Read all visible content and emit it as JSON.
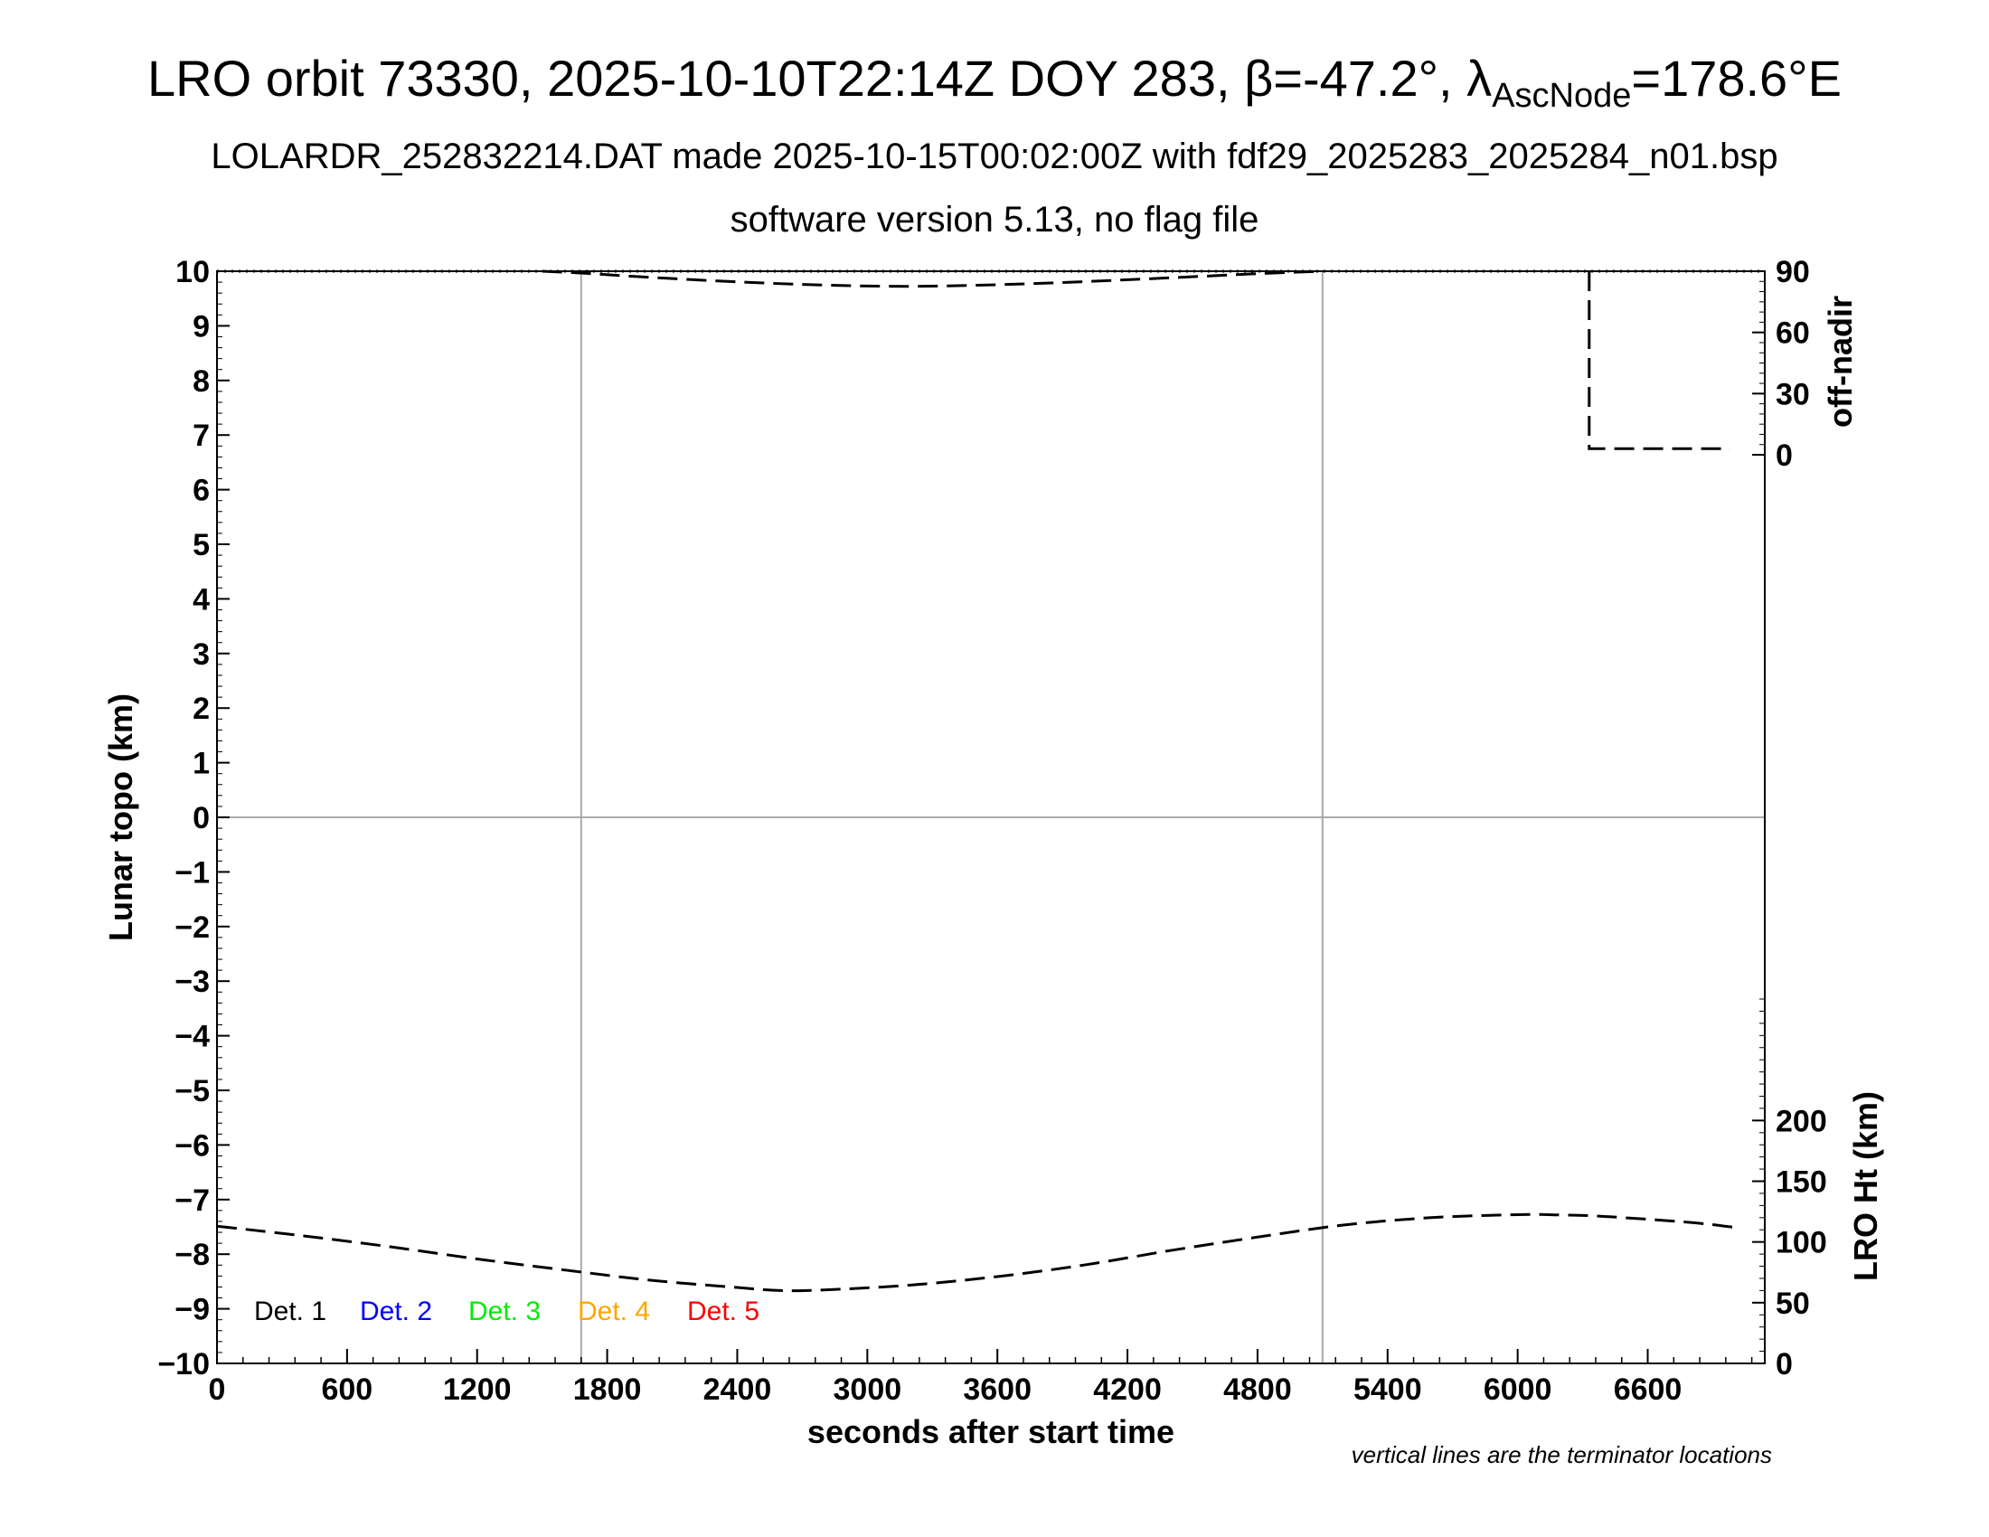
{
  "title": {
    "main": "LRO orbit 73330, 2025-10-10T22:14Z DOY 283, β=-47.2°, λ",
    "sub": "AscNode",
    "tail": "=178.6°E"
  },
  "subtitle1": "LOLARDR_252832214.DAT made 2025-10-15T00:02:00Z with fdf29_2025283_2025284_n01.bsp",
  "subtitle2": "software version 5.13, no flag file",
  "note": "vertical lines are the terminator locations",
  "colors": {
    "det1": "#000000",
    "det2": "#0000ff",
    "det3": "#00ee00",
    "det4": "#ffa500",
    "det5": "#ff0000",
    "grid": "#aaaaaa"
  },
  "chart_data": {
    "type": "line",
    "xlabel": "seconds after start time",
    "ylabel": "Lunar topo (km)",
    "right_top_label": "off-nadir",
    "right_bottom_label": "LRO Ht (km)",
    "xlim": [
      0,
      7140
    ],
    "ylim": [
      -10,
      10
    ],
    "x_ticks": [
      0,
      600,
      1200,
      1800,
      2400,
      3000,
      3600,
      4200,
      4800,
      5400,
      6000,
      6600
    ],
    "y_ticks": [
      10,
      9,
      8,
      7,
      6,
      5,
      4,
      3,
      2,
      1,
      0,
      -1,
      -2,
      -3,
      -4,
      -5,
      -6,
      -7,
      -8,
      -9,
      -10
    ],
    "y_tick_labels": [
      "10",
      "9",
      "8",
      "7",
      "6",
      "5",
      "4",
      "3",
      "2",
      "1",
      "0",
      "−1",
      "−2",
      "−3",
      "−4",
      "−5",
      "−6",
      "−7",
      "−8",
      "−9",
      "−10"
    ],
    "off_nadir_ticks": [
      0,
      30,
      60,
      90
    ],
    "off_nadir_range": [
      0,
      90
    ],
    "lro_ht_ticks": [
      0,
      50,
      100,
      150,
      200
    ],
    "lro_ht_range": [
      0,
      300
    ],
    "terminators": [
      1680,
      5100
    ],
    "legend": [
      "Det. 1",
      "Det. 2",
      "Det. 3",
      "Det. 4",
      "Det. 5"
    ],
    "series": [
      {
        "axis": "off-nadir",
        "x": [
          1500,
          1680,
          2000,
          2400,
          2800,
          3200,
          3600,
          4000,
          4400,
          4800,
          5100
        ],
        "y": [
          90,
          89.1,
          87,
          84.8,
          83.2,
          82.6,
          83.4,
          84.9,
          86.8,
          88.8,
          90
        ]
      },
      {
        "axis": "off-nadir",
        "x": [
          6330,
          6330,
          6980
        ],
        "y": [
          90,
          3,
          3
        ]
      },
      {
        "axis": "lro-ht",
        "x": [
          0,
          400,
          800,
          1200,
          1600,
          2000,
          2400,
          2600,
          2800,
          3200,
          3600,
          4000,
          4400,
          4800,
          5200,
          5600,
          6000,
          6200,
          6400,
          6800,
          7000
        ],
        "y": [
          113,
          105,
          96,
          86,
          77,
          68.5,
          62.5,
          60,
          60.5,
          64.5,
          71.5,
          81,
          93,
          104,
          114,
          120,
          122.5,
          122.2,
          121,
          116,
          112
        ]
      }
    ]
  }
}
